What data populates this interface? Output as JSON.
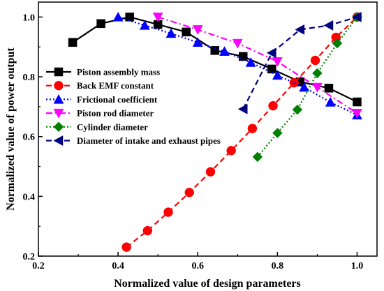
{
  "chart_data": {
    "type": "line",
    "xlabel": "Normalized value of design parameters",
    "ylabel": "Normalized value of power output",
    "xlim": [
      0.2,
      1.05
    ],
    "ylim": [
      0.2,
      1.05
    ],
    "xticks": [
      0.2,
      0.4,
      0.6,
      0.8,
      1.0
    ],
    "yticks": [
      0.2,
      0.4,
      0.6,
      0.8,
      1.0
    ],
    "tick_labels_x": [
      "0.2",
      "0.4",
      "0.6",
      "0.8",
      "1.0"
    ],
    "tick_labels_y": [
      "0.2",
      "0.4",
      "0.6",
      "0.8",
      "1.0"
    ],
    "legend_position": "top-left",
    "series": [
      {
        "name": "Piston assembly mass",
        "color": "#000000",
        "marker": "square",
        "dash": "solid",
        "x": [
          0.286,
          0.357,
          0.429,
          0.5,
          0.571,
          0.643,
          0.714,
          0.786,
          0.857,
          0.929,
          1.0
        ],
        "y": [
          0.915,
          0.978,
          1.0,
          0.975,
          0.95,
          0.888,
          0.868,
          0.826,
          0.783,
          0.762,
          0.716
        ]
      },
      {
        "name": "Back EMF constant",
        "color": "#ff0000",
        "marker": "circle",
        "dash": "dashed",
        "x": [
          0.421,
          0.474,
          0.526,
          0.579,
          0.632,
          0.684,
          0.737,
          0.789,
          0.842,
          0.895,
          0.947,
          1.0
        ],
        "y": [
          0.23,
          0.285,
          0.347,
          0.413,
          0.482,
          0.553,
          0.627,
          0.703,
          0.78,
          0.855,
          0.932,
          1.0
        ]
      },
      {
        "name": "Frictional coefficient",
        "color": "#0000ff",
        "marker": "triangle-up",
        "dash": "dotted",
        "x": [
          0.4,
          0.467,
          0.533,
          0.6,
          0.667,
          0.733,
          0.8,
          0.867,
          0.933,
          1.0
        ],
        "y": [
          1.0,
          0.972,
          0.945,
          0.915,
          0.885,
          0.848,
          0.805,
          0.765,
          0.715,
          0.672
        ]
      },
      {
        "name": "Piston rod diameter",
        "color": "#ff00ff",
        "marker": "triangle-down",
        "dash": "dashdot",
        "x": [
          0.5,
          0.6,
          0.7,
          0.8,
          0.9,
          1.0
        ],
        "y": [
          1.0,
          0.958,
          0.912,
          0.851,
          0.765,
          0.678
        ]
      },
      {
        "name": "Cylinder diameter",
        "color": "#008000",
        "marker": "diamond",
        "dash": "dotted",
        "x": [
          0.75,
          0.8,
          0.85,
          0.9,
          0.95,
          1.0
        ],
        "y": [
          0.532,
          0.612,
          0.69,
          0.812,
          0.912,
          1.0
        ]
      },
      {
        "name": "Diameter of intake and exhaust pipes",
        "color": "#000080",
        "marker": "triangle-left",
        "dash": "dashed",
        "x": [
          0.714,
          0.786,
          0.857,
          0.929,
          1.0
        ],
        "y": [
          0.692,
          0.88,
          0.958,
          0.972,
          1.0
        ]
      }
    ]
  }
}
